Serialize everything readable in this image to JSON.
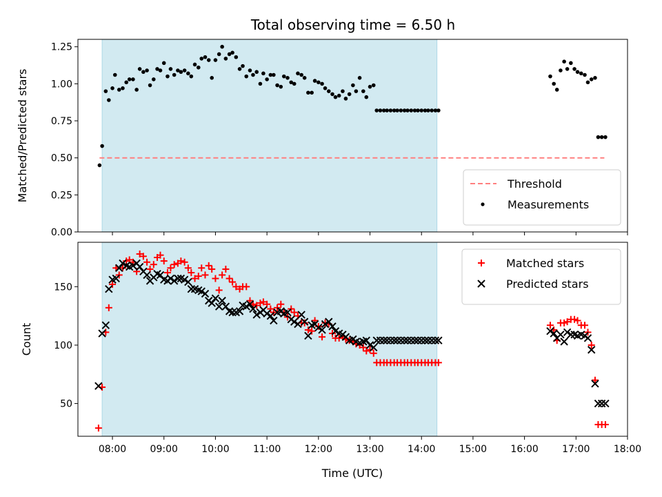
{
  "chart_data": {
    "title": "Total observing time = 6.50 h",
    "xlabel": "Time (UTC)",
    "x_unit": "hour of day (UTC)",
    "xlim": [
      7.33,
      18.0
    ],
    "x_ticks": [
      8,
      9,
      10,
      11,
      12,
      13,
      14,
      15,
      16,
      17,
      18
    ],
    "x_tick_labels": [
      "08:00",
      "09:00",
      "10:00",
      "11:00",
      "12:00",
      "13:00",
      "14:00",
      "15:00",
      "16:00",
      "17:00",
      "18:00"
    ],
    "shaded_span": {
      "x": [
        7.8,
        14.3
      ],
      "color": "#add8e6"
    },
    "panels": [
      {
        "type": "scatter",
        "ylabel": "Matched/Predicted stars",
        "ylim": [
          0,
          1.3
        ],
        "y_ticks": [
          0,
          0.25,
          0.5,
          0.75,
          1.0,
          1.25
        ],
        "y_tick_labels": [
          "0.00",
          "0.25",
          "0.50",
          "0.75",
          "1.00",
          "1.25"
        ],
        "legend_position": "lower-right",
        "threshold": {
          "name": "Threshold",
          "y": 0.5,
          "x": [
            7.75,
            17.55
          ],
          "color": "#ff7f7f"
        },
        "series": [
          {
            "name": "Measurements",
            "color": "#000000",
            "marker": "dot",
            "x": [
              7.75,
              7.8,
              7.87,
              7.93,
              8.0,
              8.05,
              8.13,
              8.2,
              8.27,
              8.33,
              8.4,
              8.47,
              8.53,
              8.6,
              8.67,
              8.73,
              8.8,
              8.87,
              8.93,
              9.0,
              9.07,
              9.13,
              9.2,
              9.27,
              9.33,
              9.4,
              9.47,
              9.53,
              9.6,
              9.67,
              9.73,
              9.8,
              9.87,
              9.93,
              10.0,
              10.07,
              10.13,
              10.2,
              10.27,
              10.33,
              10.4,
              10.47,
              10.53,
              10.6,
              10.67,
              10.73,
              10.8,
              10.87,
              10.93,
              11.0,
              11.07,
              11.13,
              11.2,
              11.27,
              11.33,
              11.4,
              11.47,
              11.53,
              11.6,
              11.67,
              11.73,
              11.8,
              11.87,
              11.93,
              12.0,
              12.07,
              12.13,
              12.2,
              12.27,
              12.33,
              12.4,
              12.47,
              12.53,
              12.6,
              12.67,
              12.73,
              12.8,
              12.87,
              12.93,
              13.0,
              13.07,
              13.13,
              13.2,
              13.27,
              13.33,
              13.4,
              13.47,
              13.53,
              13.6,
              13.67,
              13.73,
              13.8,
              13.87,
              13.93,
              14.0,
              14.07,
              14.13,
              14.2,
              14.27,
              14.33,
              16.5,
              16.57,
              16.63,
              16.7,
              16.77,
              16.83,
              16.9,
              16.97,
              17.03,
              17.1,
              17.17,
              17.23,
              17.3,
              17.37,
              17.43,
              17.5,
              17.57
            ],
            "y": [
              0.45,
              0.58,
              0.95,
              0.89,
              0.97,
              1.06,
              0.96,
              0.97,
              1.01,
              1.03,
              1.03,
              0.96,
              1.1,
              1.08,
              1.09,
              0.99,
              1.03,
              1.1,
              1.09,
              1.14,
              1.05,
              1.1,
              1.06,
              1.09,
              1.08,
              1.09,
              1.07,
              1.05,
              1.13,
              1.11,
              1.17,
              1.18,
              1.16,
              1.04,
              1.16,
              1.2,
              1.25,
              1.17,
              1.2,
              1.21,
              1.18,
              1.1,
              1.12,
              1.05,
              1.09,
              1.06,
              1.08,
              1.0,
              1.07,
              1.03,
              1.06,
              1.06,
              0.99,
              0.98,
              1.05,
              1.04,
              1.01,
              1.0,
              1.07,
              1.06,
              1.04,
              0.94,
              0.94,
              1.02,
              1.01,
              1.0,
              0.97,
              0.95,
              0.93,
              0.91,
              0.92,
              0.95,
              0.9,
              0.93,
              0.99,
              0.95,
              1.04,
              0.95,
              0.91,
              0.98,
              0.99,
              0.82,
              0.82,
              0.82,
              0.82,
              0.82,
              0.82,
              0.82,
              0.82,
              0.82,
              0.82,
              0.82,
              0.82,
              0.82,
              0.82,
              0.82,
              0.82,
              0.82,
              0.82,
              0.82,
              1.05,
              1.0,
              0.96,
              1.09,
              1.15,
              1.1,
              1.14,
              1.1,
              1.08,
              1.07,
              1.06,
              1.01,
              1.03,
              1.04,
              0.64,
              0.64,
              0.64
            ]
          }
        ]
      },
      {
        "type": "scatter",
        "ylabel": "Count",
        "ylim": [
          22,
          188
        ],
        "y_ticks": [
          50,
          100,
          150
        ],
        "y_tick_labels": [
          "50",
          "100",
          "150"
        ],
        "legend_position": "top-right",
        "series": [
          {
            "name": "Matched stars",
            "color": "#ff0000",
            "marker": "plus",
            "x": [
              7.73,
              7.8,
              7.87,
              7.93,
              8.0,
              8.07,
              8.13,
              8.2,
              8.27,
              8.33,
              8.4,
              8.47,
              8.53,
              8.6,
              8.67,
              8.73,
              8.8,
              8.87,
              8.93,
              9.0,
              9.07,
              9.13,
              9.2,
              9.27,
              9.33,
              9.4,
              9.47,
              9.53,
              9.6,
              9.67,
              9.73,
              9.8,
              9.87,
              9.93,
              10.0,
              10.07,
              10.13,
              10.2,
              10.27,
              10.33,
              10.4,
              10.47,
              10.53,
              10.6,
              10.67,
              10.73,
              10.8,
              10.87,
              10.93,
              11.0,
              11.07,
              11.13,
              11.2,
              11.27,
              11.33,
              11.4,
              11.47,
              11.53,
              11.6,
              11.67,
              11.73,
              11.8,
              11.87,
              11.93,
              12.0,
              12.07,
              12.13,
              12.2,
              12.27,
              12.33,
              12.4,
              12.47,
              12.53,
              12.6,
              12.67,
              12.73,
              12.8,
              12.87,
              12.93,
              13.0,
              13.07,
              13.13,
              13.2,
              13.27,
              13.33,
              13.4,
              13.47,
              13.53,
              13.6,
              13.67,
              13.73,
              13.8,
              13.87,
              13.93,
              14.0,
              14.07,
              14.13,
              14.2,
              14.27,
              14.33,
              16.5,
              16.57,
              16.63,
              16.7,
              16.77,
              16.83,
              16.9,
              16.97,
              17.03,
              17.1,
              17.17,
              17.23,
              17.3,
              17.37,
              17.43,
              17.5,
              17.57
            ],
            "y": [
              29,
              64,
              111,
              132,
              152,
              166,
              160,
              166,
              172,
              173,
              171,
              163,
              178,
              176,
              171,
              165,
              169,
              175,
              177,
              172,
              162,
              166,
              169,
              170,
              172,
              171,
              166,
              162,
              157,
              159,
              166,
              160,
              168,
              165,
              157,
              147,
              160,
              165,
              157,
              154,
              150,
              148,
              150,
              150,
              138,
              135,
              134,
              136,
              137,
              135,
              131,
              128,
              132,
              135,
              128,
              124,
              131,
              128,
              125,
              119,
              119,
              113,
              112,
              121,
              116,
              107,
              119,
              118,
              110,
              106,
              106,
              107,
              105,
              104,
              103,
              101,
              100,
              98,
              95,
              96,
              93,
              85,
              85,
              85,
              85,
              85,
              85,
              85,
              85,
              85,
              85,
              85,
              85,
              85,
              85,
              85,
              85,
              85,
              85,
              85,
              117,
              113,
              104,
              119,
              119,
              120,
              122,
              122,
              121,
              117,
              117,
              111,
              100,
              70,
              32,
              32,
              32
            ],
            "y_note": "values estimated from the plot"
          },
          {
            "name": "Predicted stars",
            "color": "#000000",
            "marker": "x",
            "x": [
              7.73,
              7.8,
              7.87,
              7.93,
              8.0,
              8.07,
              8.13,
              8.2,
              8.27,
              8.33,
              8.4,
              8.47,
              8.53,
              8.6,
              8.67,
              8.73,
              8.8,
              8.87,
              8.93,
              9.0,
              9.07,
              9.13,
              9.2,
              9.27,
              9.33,
              9.4,
              9.47,
              9.53,
              9.6,
              9.67,
              9.73,
              9.8,
              9.87,
              9.93,
              10.0,
              10.07,
              10.13,
              10.2,
              10.27,
              10.33,
              10.4,
              10.47,
              10.53,
              10.6,
              10.67,
              10.73,
              10.8,
              10.87,
              10.93,
              11.0,
              11.07,
              11.13,
              11.2,
              11.27,
              11.33,
              11.4,
              11.47,
              11.53,
              11.6,
              11.67,
              11.73,
              11.8,
              11.87,
              11.93,
              12.0,
              12.07,
              12.13,
              12.2,
              12.27,
              12.33,
              12.4,
              12.47,
              12.53,
              12.6,
              12.67,
              12.73,
              12.8,
              12.87,
              12.93,
              13.0,
              13.07,
              13.13,
              13.2,
              13.27,
              13.33,
              13.4,
              13.47,
              13.53,
              13.6,
              13.67,
              13.73,
              13.8,
              13.87,
              13.93,
              14.0,
              14.07,
              14.13,
              14.2,
              14.27,
              14.33,
              16.5,
              16.57,
              16.63,
              16.7,
              16.77,
              16.83,
              16.9,
              16.97,
              17.03,
              17.1,
              17.17,
              17.23,
              17.3,
              17.37,
              17.43,
              17.5,
              17.57
            ],
            "y": [
              65,
              110,
              117,
              148,
              156,
              157,
              166,
              170,
              168,
              167,
              168,
              170,
              167,
              163,
              160,
              155,
              158,
              161,
              160,
              156,
              155,
              157,
              155,
              157,
              157,
              156,
              154,
              148,
              148,
              147,
              146,
              144,
              138,
              136,
              140,
              133,
              138,
              133,
              129,
              128,
              128,
              129,
              134,
              133,
              135,
              131,
              126,
              128,
              130,
              127,
              125,
              121,
              128,
              129,
              127,
              128,
              122,
              120,
              118,
              126,
              120,
              108,
              117,
              118,
              115,
              113,
              118,
              120,
              116,
              112,
              110,
              109,
              107,
              104,
              105,
              103,
              102,
              103,
              104,
              100,
              98,
              104,
              104,
              104,
              104,
              104,
              104,
              104,
              104,
              104,
              104,
              104,
              104,
              104,
              104,
              104,
              104,
              104,
              104,
              104,
              112,
              110,
              106,
              109,
              103,
              111,
              109,
              109,
              108,
              109,
              108,
              106,
              96,
              67,
              50,
              50,
              50
            ],
            "y_note": "values estimated from the plot"
          }
        ]
      }
    ]
  }
}
